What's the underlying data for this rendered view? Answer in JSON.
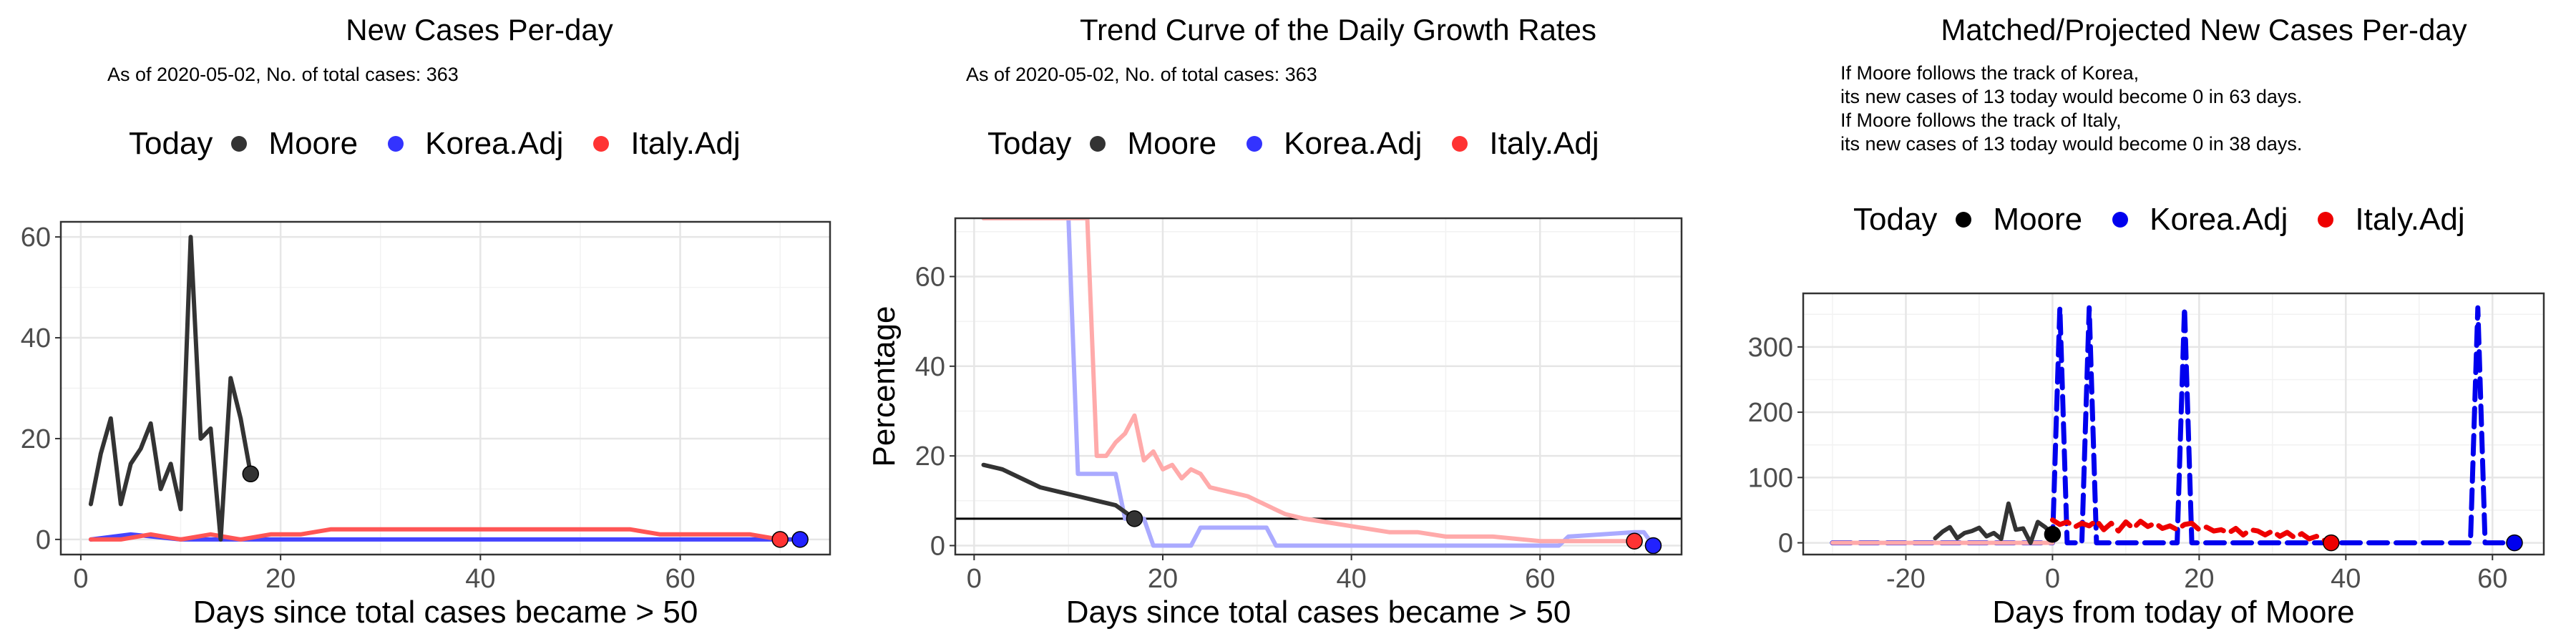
{
  "chart_data": [
    {
      "type": "line",
      "title": "New Cases Per-day",
      "subtitle": "As of 2020-05-02, No. of total cases: 363",
      "xlabel": "Days since total cases became > 50",
      "ylabel": "",
      "xlim": [
        -2,
        75
      ],
      "ylim": [
        -3,
        63
      ],
      "xticks": [
        0,
        20,
        40,
        60
      ],
      "yticks": [
        0,
        20,
        40,
        60
      ],
      "grid": true,
      "legend_position": "top",
      "legend_title": "Today",
      "series": [
        {
          "name": "Korea.Adj",
          "color": "#4444ff",
          "x": [
            1,
            5,
            10,
            15,
            20,
            25,
            30,
            35,
            40,
            45,
            50,
            55,
            60,
            65,
            70,
            72
          ],
          "y": [
            0,
            1,
            0,
            0,
            0,
            0,
            0,
            0,
            0,
            0,
            0,
            0,
            0,
            0,
            0,
            0
          ]
        },
        {
          "name": "Italy.Adj",
          "color": "#ff5555",
          "x": [
            1,
            4,
            7,
            10,
            13,
            16,
            19,
            22,
            25,
            28,
            31,
            34,
            37,
            40,
            43,
            46,
            49,
            52,
            55,
            58,
            61,
            64,
            67,
            70
          ],
          "y": [
            0,
            0,
            1,
            0,
            1,
            0,
            1,
            1,
            2,
            2,
            2,
            2,
            2,
            2,
            2,
            2,
            2,
            2,
            2,
            1,
            1,
            1,
            1,
            0
          ]
        },
        {
          "name": "Moore",
          "color": "#333333",
          "x": [
            1,
            2,
            3,
            4,
            5,
            6,
            7,
            8,
            9,
            10,
            11,
            12,
            13,
            14,
            15,
            16,
            17
          ],
          "y": [
            7,
            17,
            24,
            7,
            15,
            18,
            23,
            10,
            15,
            6,
            60,
            20,
            22,
            0,
            32,
            24,
            13
          ]
        }
      ],
      "today_points": [
        {
          "name": "Moore",
          "x": 17,
          "y": 13,
          "color": "#333333"
        },
        {
          "name": "Italy.Adj",
          "x": 70,
          "y": 0,
          "color": "#ff3333"
        },
        {
          "name": "Korea.Adj",
          "x": 72,
          "y": 0,
          "color": "#2222ff"
        }
      ]
    },
    {
      "type": "line",
      "title": "Trend Curve of the Daily Growth Rates",
      "subtitle": "As of 2020-05-02, No. of total cases: 363",
      "xlabel": "Days since total cases became > 50",
      "ylabel": "Percentage",
      "xlim": [
        -2,
        75
      ],
      "ylim": [
        -2,
        73
      ],
      "xticks": [
        0,
        20,
        40,
        60
      ],
      "yticks": [
        0,
        20,
        40,
        60
      ],
      "grid": true,
      "hline": 6,
      "legend_position": "top",
      "legend_title": "Today",
      "series": [
        {
          "name": "Korea.Adj",
          "color": "#aaaaff",
          "x": [
            1,
            2,
            3,
            4,
            5,
            6,
            7,
            8,
            9,
            10,
            11,
            12,
            13,
            14,
            15,
            16,
            17,
            18,
            19,
            20,
            23,
            24,
            25,
            31,
            32,
            62,
            63,
            70,
            71,
            72
          ],
          "y": [
            73,
            73,
            73,
            73,
            73,
            73,
            73,
            73,
            73,
            73,
            16,
            16,
            16,
            16,
            16,
            6,
            6,
            6,
            0,
            0,
            0,
            4,
            4,
            4,
            0,
            0,
            2,
            3,
            3,
            0
          ]
        },
        {
          "name": "Italy.Adj",
          "color": "#ffaaaa",
          "x": [
            1,
            3,
            5,
            7,
            9,
            11,
            12,
            13,
            14,
            15,
            16,
            17,
            18,
            19,
            20,
            21,
            22,
            23,
            24,
            25,
            27,
            29,
            31,
            33,
            35,
            38,
            41,
            44,
            47,
            50,
            55,
            60,
            65,
            70
          ],
          "y": [
            73,
            73,
            73,
            73,
            73,
            73,
            73,
            20,
            20,
            23,
            25,
            29,
            19,
            21,
            17,
            18,
            15,
            17,
            16,
            13,
            12,
            11,
            9,
            7,
            6,
            5,
            4,
            3,
            3,
            2,
            2,
            1,
            1,
            1
          ]
        },
        {
          "name": "Moore",
          "color": "#333333",
          "x": [
            1,
            3,
            5,
            7,
            9,
            11,
            13,
            15,
            17
          ],
          "y": [
            18,
            17,
            15,
            13,
            12,
            11,
            10,
            9,
            6
          ]
        }
      ],
      "today_points": [
        {
          "name": "Moore",
          "x": 17,
          "y": 6,
          "color": "#333333"
        },
        {
          "name": "Italy.Adj",
          "x": 70,
          "y": 1,
          "color": "#ff3333"
        },
        {
          "name": "Korea.Adj",
          "x": 72,
          "y": 0,
          "color": "#2222ff"
        }
      ]
    },
    {
      "type": "line",
      "title": "Matched/Projected New Cases Per-day",
      "subtitle": "If Moore follows the track of Korea,\nits new cases of 13 today would become 0 in 63 days.\nIf Moore follows the track of Italy,\nits new cases of 13 today would become 0 in 38 days.",
      "xlabel": "Days from today of Moore",
      "ylabel": "",
      "xlim": [
        -34,
        67
      ],
      "ylim": [
        -18,
        382
      ],
      "xticks": [
        -20,
        0,
        20,
        40,
        60
      ],
      "yticks": [
        0,
        100,
        200,
        300
      ],
      "grid": true,
      "legend_position": "top",
      "legend_title": "Today",
      "series": [
        {
          "name": "Korea.Adj",
          "color": "#0000ee",
          "dashed": true,
          "x": [
            -30,
            0,
            0.5,
            1,
            1.5,
            2,
            3,
            4,
            4.5,
            5,
            5.5,
            6,
            7,
            17,
            17.5,
            18,
            18.5,
            19,
            20,
            57,
            57.5,
            58,
            58.5,
            59,
            60,
            63
          ],
          "y": [
            0,
            0,
            180,
            360,
            180,
            0,
            0,
            0,
            180,
            360,
            180,
            0,
            0,
            0,
            180,
            360,
            180,
            0,
            0,
            0,
            180,
            360,
            180,
            0,
            0,
            0
          ]
        },
        {
          "name": "Italy.Adj",
          "color": "#ee0000",
          "dashed": true,
          "x": [
            0,
            1,
            2,
            3,
            4,
            5,
            6,
            7,
            8,
            9,
            10,
            11,
            12,
            13,
            14,
            15,
            16,
            17,
            18,
            19,
            20,
            21,
            22,
            23,
            24,
            25,
            26,
            27,
            28,
            29,
            30,
            31,
            32,
            33,
            34,
            35,
            36,
            37,
            38
          ],
          "y": [
            35,
            28,
            32,
            24,
            30,
            26,
            34,
            20,
            30,
            18,
            32,
            22,
            33,
            25,
            30,
            22,
            26,
            20,
            28,
            30,
            20,
            24,
            18,
            20,
            15,
            22,
            12,
            20,
            18,
            12,
            18,
            10,
            16,
            8,
            14,
            6,
            10,
            4,
            0
          ]
        },
        {
          "name": "Italy.Adj",
          "color": "#ffaaaa",
          "x": [
            -30,
            -25,
            -20,
            -15,
            -10,
            -5,
            0
          ],
          "y": [
            0,
            0,
            0,
            0,
            0,
            0,
            0
          ]
        },
        {
          "name": "Moore",
          "color": "#333333",
          "x": [
            -16,
            -15,
            -14,
            -13,
            -12,
            -11,
            -10,
            -9,
            -8,
            -7,
            -6,
            -5,
            -4,
            -3,
            -2,
            -1,
            0
          ],
          "y": [
            7,
            17,
            24,
            7,
            15,
            18,
            23,
            10,
            15,
            6,
            60,
            20,
            22,
            0,
            32,
            24,
            13
          ]
        }
      ],
      "today_points": [
        {
          "name": "Moore",
          "x": 0,
          "y": 13,
          "color": "#000000"
        },
        {
          "name": "Italy.Adj",
          "x": 38,
          "y": 0,
          "color": "#ee0000"
        },
        {
          "name": "Korea.Adj",
          "x": 63,
          "y": 0,
          "color": "#0000ee"
        }
      ]
    }
  ],
  "legend": {
    "title": "Today",
    "items": [
      {
        "label": "Moore",
        "color": "#333333"
      },
      {
        "label": "Korea.Adj",
        "color": "#3333ff"
      },
      {
        "label": "Italy.Adj",
        "color": "#ff3333"
      }
    ],
    "items_panel3": [
      {
        "label": "Moore",
        "color": "#000000"
      },
      {
        "label": "Korea.Adj",
        "color": "#0000ee"
      },
      {
        "label": "Italy.Adj",
        "color": "#ee0000"
      }
    ]
  }
}
